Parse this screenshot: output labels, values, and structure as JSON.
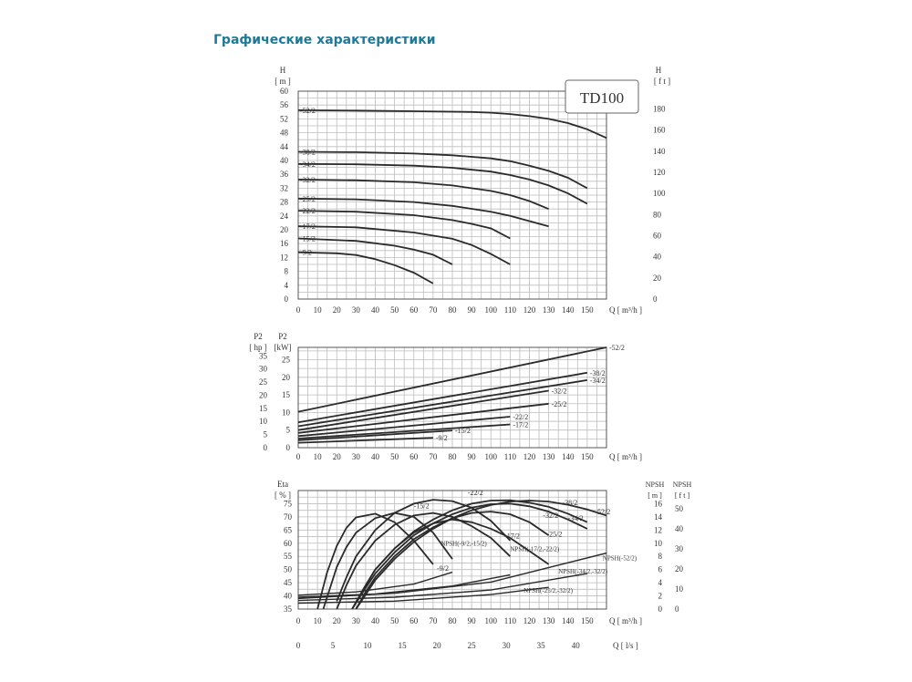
{
  "page": {
    "title": "Графические характеристики"
  },
  "colors": {
    "title": "#1f7a9a",
    "curve": "#2a2a2a",
    "grid": "#bdbdbd"
  },
  "chart_data": [
    {
      "type": "line",
      "id": "head",
      "title": "TD100",
      "ylabel_left": [
        "H",
        "[ m ]"
      ],
      "ylabel_right": [
        "H",
        "[ f t ]"
      ],
      "xlabel": "Q  [ m³/h ]",
      "xlim": [
        0,
        160
      ],
      "ylim": [
        0,
        60
      ],
      "yticks_left": [
        0,
        4,
        8,
        12,
        16,
        20,
        24,
        28,
        32,
        36,
        40,
        44,
        48,
        52,
        56,
        60
      ],
      "yticks_right": [
        0,
        20,
        40,
        60,
        80,
        100,
        120,
        140,
        160,
        180
      ],
      "xticks": [
        0,
        10,
        20,
        30,
        40,
        50,
        60,
        70,
        80,
        90,
        100,
        110,
        120,
        130,
        140,
        150
      ],
      "grid": true,
      "series": [
        {
          "name": "52/2",
          "x": [
            0,
            30,
            60,
            90,
            100,
            110,
            120,
            130,
            140,
            150,
            160
          ],
          "y": [
            54.5,
            54.4,
            54.2,
            54,
            53.8,
            53.4,
            52.8,
            52,
            50.8,
            49,
            46.5
          ]
        },
        {
          "name": "38/2",
          "x": [
            0,
            30,
            60,
            80,
            100,
            110,
            120,
            130,
            140,
            150
          ],
          "y": [
            42.5,
            42.4,
            42,
            41.5,
            40.6,
            39.8,
            38.5,
            37,
            35,
            32
          ]
        },
        {
          "name": "34/2",
          "x": [
            0,
            30,
            60,
            80,
            100,
            110,
            120,
            130,
            140,
            150
          ],
          "y": [
            39,
            38.9,
            38.5,
            37.9,
            36.8,
            35.8,
            34.5,
            32.8,
            30.5,
            27.5
          ]
        },
        {
          "name": "32/2",
          "x": [
            0,
            30,
            60,
            80,
            100,
            110,
            120,
            130
          ],
          "y": [
            34.5,
            34.3,
            33.7,
            32.8,
            31.2,
            30,
            28.3,
            26
          ]
        },
        {
          "name": "25/2",
          "x": [
            0,
            30,
            60,
            80,
            100,
            110,
            120,
            130
          ],
          "y": [
            29,
            28.8,
            28,
            26.9,
            25.2,
            24,
            22.5,
            21
          ]
        },
        {
          "name": "22/2",
          "x": [
            0,
            30,
            60,
            80,
            90,
            100,
            110
          ],
          "y": [
            25.5,
            25.2,
            24.2,
            22.8,
            21.7,
            20.4,
            17.5
          ]
        },
        {
          "name": "17/2",
          "x": [
            0,
            30,
            60,
            80,
            90,
            100,
            110
          ],
          "y": [
            21,
            20.7,
            19.2,
            17.4,
            15.6,
            13,
            10
          ]
        },
        {
          "name": "15/2",
          "x": [
            0,
            30,
            50,
            60,
            70,
            80
          ],
          "y": [
            17.5,
            16.8,
            15.4,
            14.3,
            12.8,
            10
          ]
        },
        {
          "name": "9/2",
          "x": [
            0,
            20,
            30,
            40,
            50,
            60,
            70
          ],
          "y": [
            13.5,
            13.2,
            12.7,
            11.5,
            9.8,
            7.6,
            4.5
          ]
        }
      ]
    },
    {
      "type": "line",
      "id": "power",
      "ylabel_left": [
        "P2",
        "[ hp ]"
      ],
      "ylabel_right": [
        "P2",
        "[kW]"
      ],
      "xlabel": "Q  [ m³/h ]",
      "xlim": [
        0,
        160
      ],
      "ylim": [
        0,
        40
      ],
      "yticks_kw": [
        0,
        5,
        10,
        15,
        20,
        25
      ],
      "yticks_hp": [
        0,
        5,
        10,
        15,
        20,
        25,
        30,
        35
      ],
      "xticks": [
        0,
        10,
        20,
        30,
        40,
        50,
        60,
        70,
        80,
        90,
        100,
        110,
        120,
        130,
        140,
        150
      ],
      "grid": true,
      "series": [
        {
          "name": "52/2",
          "x": [
            0,
            160
          ],
          "y": [
            10.2,
            28.5
          ]
        },
        {
          "name": "38/2",
          "x": [
            0,
            150
          ],
          "y": [
            7.2,
            21.3
          ]
        },
        {
          "name": "34/2",
          "x": [
            0,
            150
          ],
          "y": [
            6.1,
            19.2
          ]
        },
        {
          "name": "32/2",
          "x": [
            0,
            130
          ],
          "y": [
            5,
            16.2
          ]
        },
        {
          "name": "25/2",
          "x": [
            0,
            130
          ],
          "y": [
            4.2,
            12.5
          ]
        },
        {
          "name": "22/2",
          "x": [
            0,
            110
          ],
          "y": [
            3.3,
            8.8
          ]
        },
        {
          "name": "17/2",
          "x": [
            0,
            110
          ],
          "y": [
            2.6,
            6.6
          ]
        },
        {
          "name": "15/2",
          "x": [
            0,
            80
          ],
          "y": [
            2.1,
            4.9
          ]
        },
        {
          "name": "9/2",
          "x": [
            0,
            70
          ],
          "y": [
            1.4,
            2.8
          ]
        }
      ]
    },
    {
      "type": "line",
      "id": "efficiency",
      "ylabel_left": [
        "Eta",
        "[ % ]"
      ],
      "ylabel_right_m": [
        "NPSH",
        "[ m ]"
      ],
      "ylabel_right_ft": [
        "NPSH",
        "[ f t ]"
      ],
      "xlabel": "Q  [ m³/h ]",
      "xlabel_ls": "Q  [ l/s ]",
      "xlim": [
        0,
        160
      ],
      "ylim": [
        35,
        80
      ],
      "yticks_eta": [
        35,
        40,
        45,
        50,
        55,
        60,
        65,
        70,
        75
      ],
      "yticks_npsh_m": [
        0,
        2,
        4,
        6,
        8,
        10,
        12,
        14,
        16
      ],
      "yticks_npsh_ft": [
        0,
        10,
        20,
        30,
        40,
        50
      ],
      "xticks": [
        0,
        10,
        20,
        30,
        40,
        50,
        60,
        70,
        80,
        90,
        100,
        110,
        120,
        130,
        140,
        150
      ],
      "xticks_ls": [
        0,
        5,
        10,
        15,
        20,
        25,
        30,
        35,
        40
      ],
      "grid": true,
      "series": [
        {
          "name": "9/2",
          "x": [
            10,
            15,
            20,
            25,
            30,
            40,
            50,
            60,
            70
          ],
          "y": [
            35,
            49,
            59,
            65.8,
            69.8,
            71.2,
            68,
            61,
            52
          ]
        },
        {
          "name": "15/2",
          "x": [
            13,
            20,
            25,
            30,
            40,
            50,
            60,
            70,
            80
          ],
          "y": [
            35,
            51,
            58.5,
            64,
            69.5,
            71.5,
            70,
            64,
            54
          ]
        },
        {
          "name": "17/2",
          "x": [
            20,
            25,
            30,
            40,
            50,
            60,
            70,
            80,
            90,
            100,
            110
          ],
          "y": [
            35,
            44,
            51.5,
            61,
            67,
            70.5,
            71.5,
            70,
            66.5,
            62,
            55
          ]
        },
        {
          "name": "22/2",
          "x": [
            20,
            25,
            30,
            40,
            50,
            60,
            70,
            80,
            90,
            100,
            110
          ],
          "y": [
            38,
            47,
            55,
            65,
            71.5,
            75,
            76.5,
            76,
            73.5,
            68.5,
            61
          ]
        },
        {
          "name": "25/2",
          "x": [
            28,
            35,
            40,
            50,
            60,
            70,
            80,
            90,
            100,
            110,
            120,
            130
          ],
          "y": [
            35,
            44,
            50,
            58,
            64,
            67.5,
            69,
            68,
            65.5,
            62,
            57,
            52
          ]
        },
        {
          "name": "32/2",
          "x": [
            30,
            35,
            40,
            50,
            60,
            70,
            80,
            90,
            100,
            110,
            120,
            130
          ],
          "y": [
            35,
            41.5,
            47,
            55,
            61.5,
            66,
            69.5,
            71.5,
            72,
            71,
            68,
            63
          ]
        },
        {
          "name": "34/2",
          "x": [
            28,
            35,
            40,
            50,
            60,
            70,
            80,
            90,
            100,
            110,
            120,
            130,
            140,
            150
          ],
          "y": [
            35,
            43,
            48.5,
            56.5,
            63,
            67.5,
            71,
            73.5,
            74.8,
            75,
            74,
            72,
            69,
            65.5
          ]
        },
        {
          "name": "38/2",
          "x": [
            28,
            35,
            40,
            50,
            60,
            70,
            80,
            90,
            100,
            110,
            120,
            130,
            140,
            150
          ],
          "y": [
            35,
            44,
            50,
            58,
            64.5,
            69,
            72.5,
            75,
            76.2,
            76.3,
            75.4,
            73.8,
            71.2,
            68
          ]
        },
        {
          "name": "52/2",
          "x": [
            30,
            40,
            50,
            60,
            70,
            80,
            90,
            100,
            110,
            120,
            130,
            140,
            150,
            160
          ],
          "y": [
            35,
            46,
            54,
            60.5,
            65.5,
            69.5,
            72.5,
            74.5,
            75.8,
            76.2,
            75.8,
            74.6,
            72.8,
            70.5
          ]
        }
      ],
      "npsh_series": [
        {
          "name": "NPSH(-9/2,-15/2)",
          "x": [
            0,
            30,
            60,
            80
          ],
          "y": [
            2.1,
            2.6,
            3.8,
            5.6
          ]
        },
        {
          "name": "NPSH(-17/2,-22/2)",
          "x": [
            0,
            40,
            80,
            110
          ],
          "y": [
            1.8,
            2.3,
            3.5,
            5.2
          ]
        },
        {
          "name": "NPSH(-25/2,-32/2)",
          "x": [
            0,
            50,
            100,
            130
          ],
          "y": [
            0.9,
            1.2,
            2.2,
            3.3
          ]
        },
        {
          "name": "NPSH(-34/2,-32/2)",
          "x": [
            0,
            50,
            100,
            150
          ],
          "y": [
            1.3,
            1.8,
            2.9,
            5.4
          ]
        },
        {
          "name": "NPSH(-52/2)",
          "x": [
            0,
            50,
            100,
            160
          ],
          "y": [
            1.6,
            2.4,
            4.1,
            8.5
          ]
        }
      ]
    }
  ]
}
